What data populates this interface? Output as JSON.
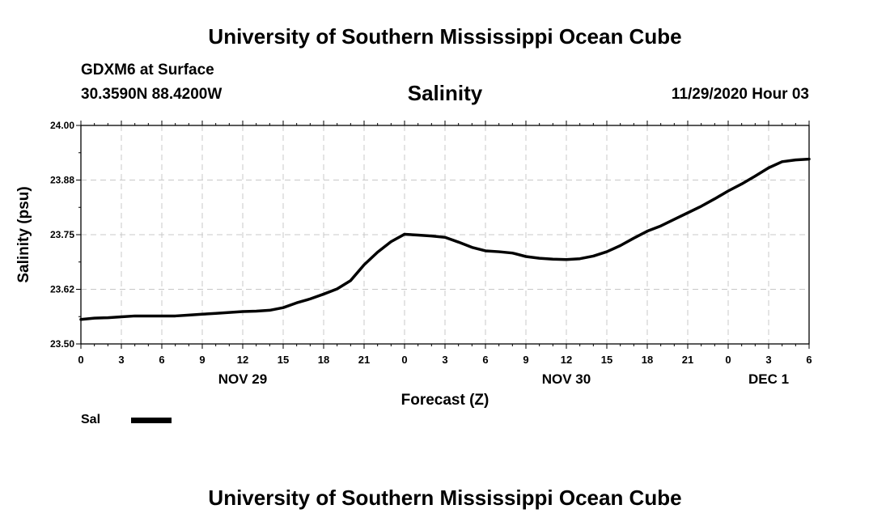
{
  "header": {
    "top_title": "University of Southern Mississippi Ocean Cube",
    "station": "GDXM6 at Surface",
    "coords": "30.3590N 88.4200W",
    "chart_title": "Salinity",
    "datetime": "11/29/2020 Hour 03"
  },
  "footer": {
    "bottom_title": "University of Southern Mississippi Ocean Cube"
  },
  "legend": {
    "label": "Sal"
  },
  "chart_data": {
    "type": "line",
    "title": "Salinity",
    "xlabel": "Forecast (Z)",
    "ylabel": "Salinity (psu)",
    "ylim": [
      23.5,
      24.0
    ],
    "xlim": [
      0,
      54
    ],
    "y_tick_labels": [
      "24.00",
      "23.88",
      "23.75",
      "23.62",
      "23.50"
    ],
    "y_ticks": [
      24.0,
      23.875,
      23.75,
      23.625,
      23.5
    ],
    "x_ticks": [
      0,
      3,
      6,
      9,
      12,
      15,
      18,
      21,
      24,
      27,
      30,
      33,
      36,
      39,
      42,
      45,
      48,
      51,
      54
    ],
    "x_tick_labels": [
      "0",
      "3",
      "6",
      "9",
      "12",
      "15",
      "18",
      "21",
      "0",
      "3",
      "6",
      "9",
      "12",
      "15",
      "18",
      "21",
      "0",
      "3",
      "6"
    ],
    "date_labels": [
      {
        "x": 12,
        "label": "NOV 29"
      },
      {
        "x": 36,
        "label": "NOV 30"
      },
      {
        "x": 51,
        "label": "DEC 1"
      }
    ],
    "grid": true,
    "series": [
      {
        "name": "Sal",
        "color": "#000000",
        "x": [
          0,
          1,
          2,
          3,
          4,
          5,
          6,
          7,
          8,
          9,
          10,
          11,
          12,
          13,
          14,
          15,
          16,
          17,
          18,
          19,
          20,
          21,
          22,
          23,
          24,
          25,
          26,
          27,
          28,
          29,
          30,
          31,
          32,
          33,
          34,
          35,
          36,
          37,
          38,
          39,
          40,
          41,
          42,
          43,
          44,
          45,
          46,
          47,
          48,
          49,
          50,
          51,
          52,
          53,
          54
        ],
        "values": [
          23.556,
          23.559,
          23.56,
          23.562,
          23.564,
          23.564,
          23.564,
          23.564,
          23.566,
          23.568,
          23.57,
          23.572,
          23.574,
          23.575,
          23.577,
          23.583,
          23.594,
          23.603,
          23.614,
          23.626,
          23.645,
          23.681,
          23.71,
          23.734,
          23.751,
          23.749,
          23.747,
          23.744,
          23.733,
          23.721,
          23.713,
          23.711,
          23.708,
          23.7,
          23.696,
          23.694,
          23.693,
          23.695,
          23.701,
          23.711,
          23.725,
          23.742,
          23.758,
          23.77,
          23.785,
          23.8,
          23.815,
          23.832,
          23.85,
          23.866,
          23.884,
          23.903,
          23.917,
          23.921,
          23.923
        ]
      }
    ]
  }
}
